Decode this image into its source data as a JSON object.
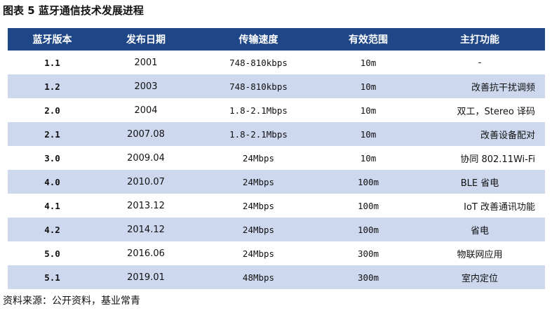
{
  "title": "图表 5  蓝牙通信技术发展进程",
  "table": {
    "headers": [
      "蓝牙版本",
      "发布日期",
      "传输速度",
      "有效范围",
      "主打功能"
    ],
    "rows": [
      {
        "version": "1.1",
        "date": "2001",
        "speed": "748-810kbps",
        "range": "10m",
        "feature": "-"
      },
      {
        "version": "1.2",
        "date": "2003",
        "speed": "748-810kbps",
        "range": "10m",
        "feature": "改善抗干扰调频"
      },
      {
        "version": "2.0",
        "date": "2004",
        "speed": "1.8-2.1Mbps",
        "range": "10m",
        "feature": "双工，Stereo 译码"
      },
      {
        "version": "2.1",
        "date": "2007.08",
        "speed": "1.8-2.1Mbps",
        "range": "10m",
        "feature": "改善设备配对"
      },
      {
        "version": "3.0",
        "date": "2009.04",
        "speed": "24Mbps",
        "range": "10m",
        "feature": "协同 802.11Wi-Fi"
      },
      {
        "version": "4.0",
        "date": "2010.07",
        "speed": "24Mbps",
        "range": "100m",
        "feature": "BLE 省电"
      },
      {
        "version": "4.1",
        "date": "2013.12",
        "speed": "24Mbps",
        "range": "100m",
        "feature": "IoT 改善通讯功能"
      },
      {
        "version": "4.2",
        "date": "2014.12",
        "speed": "24Mbps",
        "range": "100m",
        "feature": "省电"
      },
      {
        "version": "5.0",
        "date": "2016.06",
        "speed": "24Mbps",
        "range": "300m",
        "feature": "物联网应用"
      },
      {
        "version": "5.1",
        "date": "2019.01",
        "speed": "48Mbps",
        "range": "300m",
        "feature": "室内定位"
      }
    ]
  },
  "source": "资料来源：公开资料，基业常青",
  "colors": {
    "header_bg": "#1f4788",
    "header_text": "#ffffff",
    "row_shade": "#cdd7ee"
  }
}
